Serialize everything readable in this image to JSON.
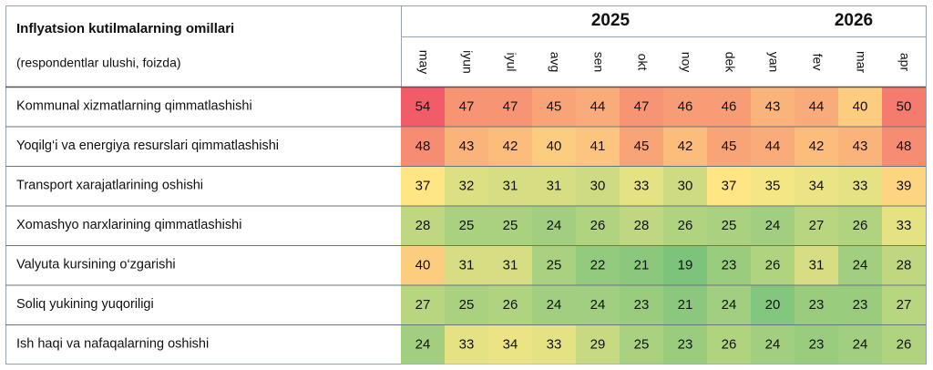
{
  "chart_data": {
    "type": "heatmap",
    "title": "Inflyatsion kutilmalarning omillari",
    "subtitle": "(respondentlar ulushi, foizda)",
    "years": [
      "2025",
      "2026"
    ],
    "columns": [
      "may",
      "iyun",
      "iyul",
      "avg",
      "sen",
      "okt",
      "noy",
      "dek",
      "yan",
      "fev",
      "mar",
      "apr"
    ],
    "rows": [
      "Kommunal xizmatlarning qimmatlashishi",
      "Yoqilg‘i va energiya resurslari qimmatlashishi",
      "Transport xarajatlarining oshishi",
      "Xomashyo narxlarining qimmatlashishi",
      "Valyuta kursining o‘zgarishi",
      "Soliq yukining yuqoriligi",
      "Ish haqi va nafaqalarning oshishi"
    ],
    "values": [
      [
        54,
        47,
        47,
        45,
        44,
        47,
        46,
        46,
        43,
        44,
        40,
        50
      ],
      [
        48,
        43,
        42,
        40,
        41,
        45,
        42,
        45,
        44,
        42,
        43,
        48
      ],
      [
        37,
        32,
        31,
        31,
        30,
        33,
        30,
        37,
        35,
        34,
        33,
        39
      ],
      [
        28,
        25,
        25,
        24,
        26,
        28,
        26,
        25,
        24,
        27,
        26,
        33
      ],
      [
        40,
        31,
        31,
        25,
        22,
        21,
        19,
        23,
        26,
        31,
        24,
        28
      ],
      [
        27,
        25,
        26,
        24,
        24,
        23,
        21,
        24,
        20,
        23,
        23,
        27
      ],
      [
        24,
        33,
        34,
        33,
        29,
        25,
        23,
        26,
        24,
        23,
        24,
        26
      ]
    ],
    "colors": [
      "#7cc47c",
      "#ffe985",
      "#f25b68"
    ]
  }
}
